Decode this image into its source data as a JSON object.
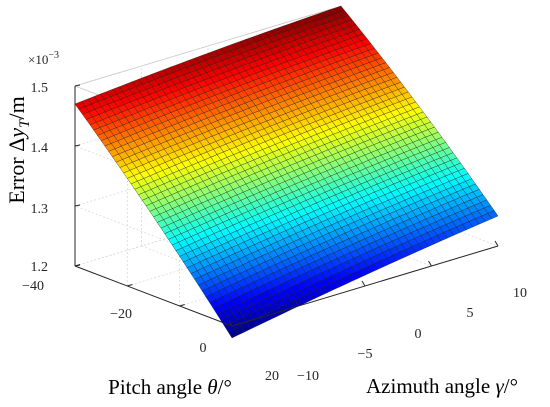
{
  "chart_data": {
    "type": "surface",
    "x": {
      "label_prefix": "Azimuth angle ",
      "label_symbol": "γ",
      "label_suffix": "/°",
      "range": [
        -10,
        10
      ],
      "ticks": [
        -10,
        -5,
        0,
        5,
        10
      ],
      "tick_labels": [
        "−10",
        "−5",
        "0",
        "5",
        "10"
      ]
    },
    "y": {
      "label_prefix": "Pitch angle ",
      "label_symbol": "θ",
      "label_suffix": "/°",
      "range": [
        -40,
        20
      ],
      "ticks": [
        -40,
        -20,
        0,
        20
      ],
      "tick_labels": [
        "−40",
        "−20",
        "0",
        "20"
      ]
    },
    "z": {
      "label_prefix": "Error Δ",
      "label_symbol": "y",
      "label_subscript": "T",
      "label_suffix": "/m",
      "range": [
        1.2,
        1.5
      ],
      "ticks": [
        1.2,
        1.3,
        1.4,
        1.5
      ],
      "tick_labels": [
        "1.2",
        "1.3",
        "1.4",
        "1.5"
      ],
      "multiplier_base": "×10",
      "multiplier_exp": "−3"
    },
    "corner_values": {
      "theta_-40_gamma_-10": 1.47,
      "theta_-40_gamma_10": 1.5,
      "theta_20_gamma_-10": 1.18,
      "theta_20_gamma_10": 1.25
    },
    "grid": true,
    "colormap": "jet",
    "color_limits": [
      1.18,
      1.5
    ]
  }
}
